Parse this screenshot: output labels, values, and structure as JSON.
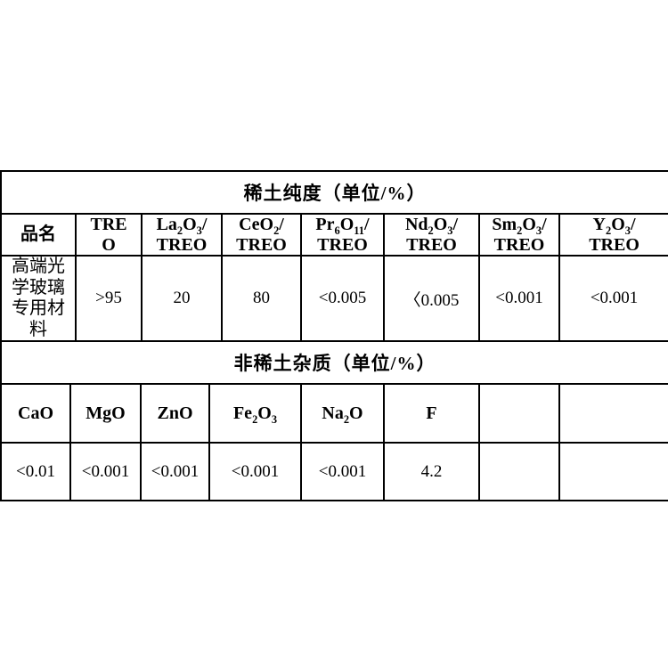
{
  "purity_table": {
    "title": "稀土纯度（单位/%）",
    "columns": [
      {
        "label": "品名"
      },
      {
        "label": "TRE\nO"
      },
      {
        "label": "La~2~O~3~/\nTREO"
      },
      {
        "label": "CeO~2~/\nTREO"
      },
      {
        "label": "Pr~6~O~11~/\nTREO"
      },
      {
        "label": "Nd~2~O~3~/\nTREO"
      },
      {
        "label": "Sm~2~O~3~/\nTREO"
      },
      {
        "label": "Y~2~O~3~/\nTREO"
      }
    ],
    "row": {
      "product_name": "高端光学玻璃专用材料",
      "values": [
        ">95",
        "20",
        "80",
        "<0.005",
        "〈0.005",
        "<0.001",
        "<0.001"
      ]
    }
  },
  "impurity_table": {
    "title": "非稀土杂质（单位/%）",
    "columns": [
      {
        "label": "CaO"
      },
      {
        "label": "MgO"
      },
      {
        "label": "ZnO"
      },
      {
        "label": "Fe~2~O~3~"
      },
      {
        "label": "Na~2~O"
      },
      {
        "label": "F"
      },
      {
        "label": ""
      },
      {
        "label": ""
      }
    ],
    "values": [
      "<0.01",
      "<0.001",
      "<0.001",
      "<0.001",
      "<0.001",
      "4.2",
      "",
      ""
    ]
  }
}
